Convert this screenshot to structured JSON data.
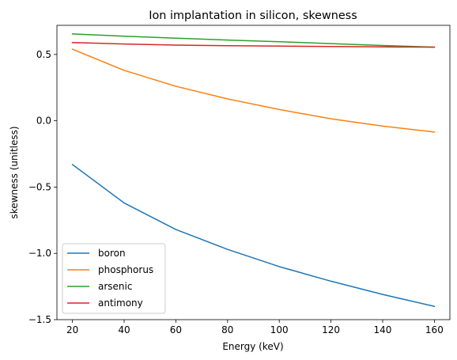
{
  "chart_data": {
    "type": "line",
    "title": "Ion implantation in silicon, skewness",
    "xlabel": "Energy (keV)",
    "ylabel": "skewness (unitless)",
    "x": [
      20,
      40,
      60,
      80,
      100,
      120,
      140,
      160
    ],
    "xlim": [
      14,
      166
    ],
    "ylim": [
      -1.5,
      0.72
    ],
    "xticks": [
      20,
      40,
      60,
      80,
      100,
      120,
      140,
      160
    ],
    "yticks": [
      -1.5,
      -1.0,
      -0.5,
      0.0,
      0.5
    ],
    "ytick_labels": [
      "−1.5",
      "−1.0",
      "−0.5",
      "0.0",
      "0.5"
    ],
    "grid": false,
    "legend_position": "lower-left",
    "series": [
      {
        "name": "boron",
        "color": "#1f77b4",
        "values": [
          -0.33,
          -0.62,
          -0.82,
          -0.97,
          -1.1,
          -1.21,
          -1.31,
          -1.4
        ]
      },
      {
        "name": "phosphorus",
        "color": "#ff7f0e",
        "values": [
          0.54,
          0.38,
          0.26,
          0.165,
          0.085,
          0.015,
          -0.04,
          -0.085
        ]
      },
      {
        "name": "arsenic",
        "color": "#2ca02c",
        "values": [
          0.655,
          0.638,
          0.623,
          0.609,
          0.596,
          0.582,
          0.568,
          0.555
        ]
      },
      {
        "name": "antimony",
        "color": "#d62728",
        "values": [
          0.59,
          0.579,
          0.571,
          0.566,
          0.563,
          0.56,
          0.557,
          0.555
        ]
      }
    ]
  }
}
